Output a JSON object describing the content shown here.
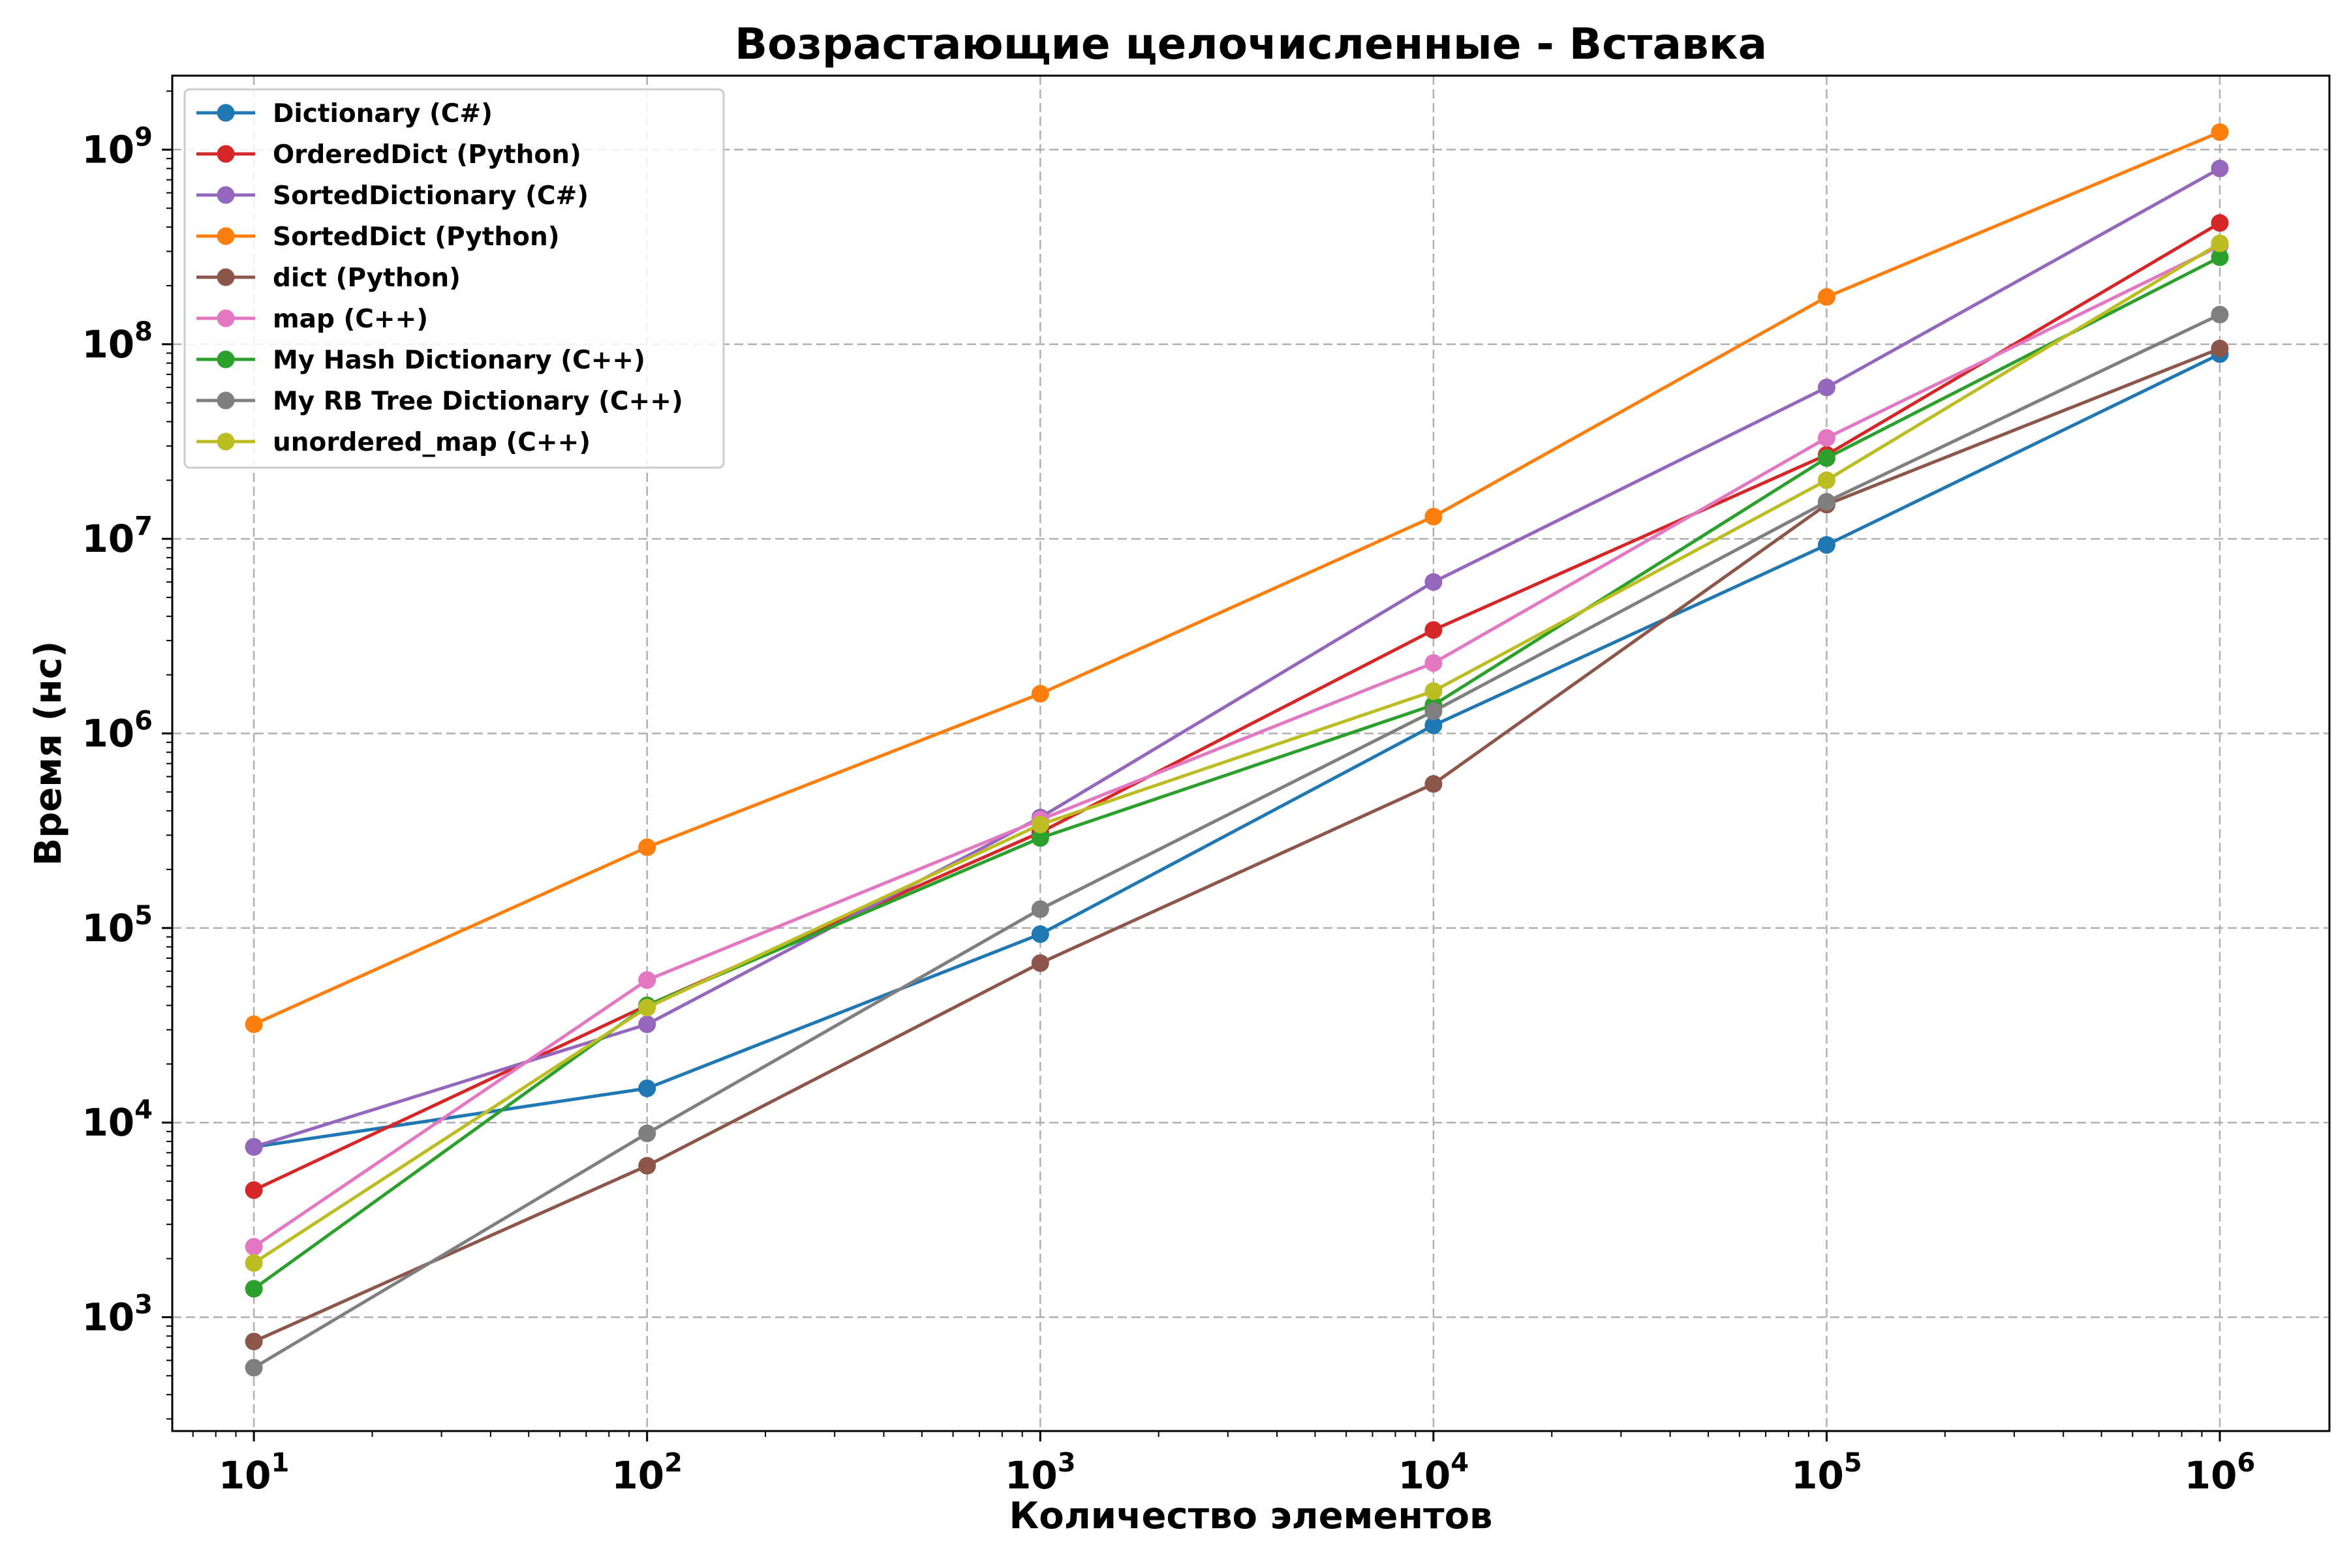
{
  "chart_data": {
    "type": "line",
    "title": "Возрастающие целочисленные - Вставка",
    "xlabel": "Количество элементов",
    "ylabel": "Время (нс)",
    "x_scale": "log",
    "y_scale": "log",
    "x": [
      10,
      100,
      1000,
      10000,
      100000,
      1000000
    ],
    "xlim": [
      6.2,
      1900000
    ],
    "ylim": [
      260,
      2400000000
    ],
    "x_ticks": [
      {
        "base": "10",
        "exp": "1",
        "value": 10
      },
      {
        "base": "10",
        "exp": "2",
        "value": 100
      },
      {
        "base": "10",
        "exp": "3",
        "value": 1000
      },
      {
        "base": "10",
        "exp": "4",
        "value": 10000
      },
      {
        "base": "10",
        "exp": "5",
        "value": 100000
      },
      {
        "base": "10",
        "exp": "6",
        "value": 1000000
      }
    ],
    "y_ticks": [
      {
        "base": "10",
        "exp": "3",
        "value": 1000
      },
      {
        "base": "10",
        "exp": "4",
        "value": 10000
      },
      {
        "base": "10",
        "exp": "5",
        "value": 100000
      },
      {
        "base": "10",
        "exp": "6",
        "value": 1000000
      },
      {
        "base": "10",
        "exp": "7",
        "value": 10000000
      },
      {
        "base": "10",
        "exp": "8",
        "value": 100000000
      },
      {
        "base": "10",
        "exp": "9",
        "value": 1000000000
      }
    ],
    "grid": true,
    "legend_position": "top-left",
    "series": [
      {
        "name": "Dictionary (C#)",
        "color": "#1f77b4",
        "values": [
          7500,
          15000,
          93000,
          1100000,
          9300000,
          89000000
        ]
      },
      {
        "name": "OrderedDict (Python)",
        "color": "#d62728",
        "values": [
          4500,
          40000,
          310000,
          3400000,
          27000000,
          420000000
        ]
      },
      {
        "name": "SortedDictionary (C#)",
        "color": "#9467bd",
        "values": [
          7500,
          32000,
          370000,
          6000000,
          60000000,
          800000000
        ]
      },
      {
        "name": "SortedDict (Python)",
        "color": "#ff7f0e",
        "values": [
          32000,
          260000,
          1600000,
          13000000,
          175000000,
          1230000000
        ]
      },
      {
        "name": "dict (Python)",
        "color": "#8c564b",
        "values": [
          750,
          6000,
          66000,
          550000,
          15000000,
          95000000
        ]
      },
      {
        "name": "map (C++)",
        "color": "#e377c2",
        "values": [
          2300,
          54000,
          360000,
          2300000,
          33000000,
          320000000
        ]
      },
      {
        "name": "My Hash Dictionary (C++)",
        "color": "#2ca02c",
        "values": [
          1400,
          40000,
          290000,
          1400000,
          26000000,
          280000000
        ]
      },
      {
        "name": "My RB Tree Dictionary (C++)",
        "color": "#7f7f7f",
        "values": [
          550,
          8800,
          125000,
          1300000,
          15500000,
          142000000
        ]
      },
      {
        "name": "unordered_map (C++)",
        "color": "#bcbd22",
        "values": [
          1900,
          39000,
          340000,
          1650000,
          20000000,
          330000000
        ]
      }
    ]
  }
}
